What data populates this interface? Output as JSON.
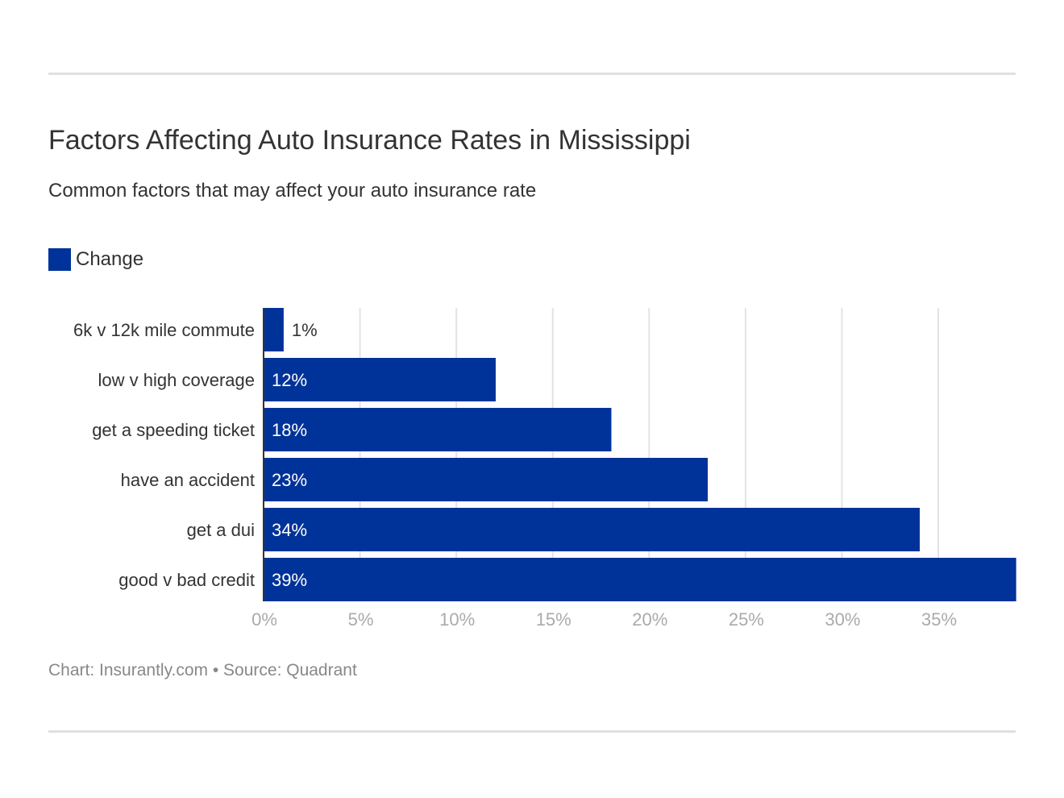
{
  "chart_data": {
    "type": "bar",
    "orientation": "horizontal",
    "title": "Factors Affecting Auto Insurance Rates in Mississippi",
    "subtitle": "Common factors that may affect your auto insurance rate",
    "categories": [
      "6k v 12k mile commute",
      "low v high coverage",
      "get a speeding ticket",
      "have an accident",
      "get a dui",
      "good v bad credit"
    ],
    "series": [
      {
        "name": "Change",
        "values": [
          1,
          12,
          18,
          23,
          34,
          39
        ],
        "color": "#003399"
      }
    ],
    "data_labels": [
      "1%",
      "12%",
      "18%",
      "23%",
      "34%",
      "39%"
    ],
    "xlim": [
      0,
      39
    ],
    "x_ticks": [
      0,
      5,
      10,
      15,
      20,
      25,
      30,
      35
    ],
    "x_tick_labels": [
      "0%",
      "5%",
      "10%",
      "15%",
      "20%",
      "25%",
      "30%",
      "35%"
    ],
    "grid": true,
    "legend": "top-left",
    "footer": "Chart: Insurantly.com • Source: Quadrant"
  }
}
